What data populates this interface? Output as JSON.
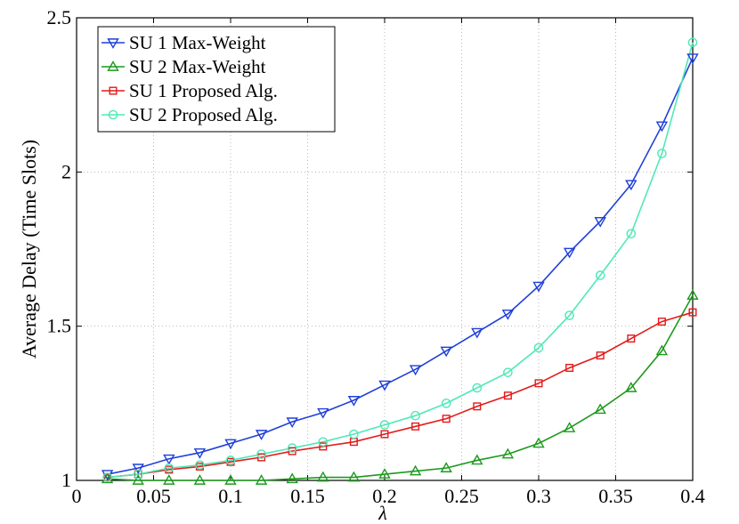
{
  "chart_data": {
    "type": "line",
    "title": "",
    "xlabel": "λ",
    "ylabel": "Average Delay (Time Slots)",
    "xlim": [
      0,
      0.4
    ],
    "ylim": [
      1,
      2.5
    ],
    "grid": true,
    "legend_position": "top-left",
    "x_ticks": [
      0,
      0.05,
      0.1,
      0.15,
      0.2,
      0.25,
      0.3,
      0.35,
      0.4
    ],
    "x_tick_labels": [
      "0",
      "0.05",
      "0.1",
      "0.15",
      "0.2",
      "0.25",
      "0.3",
      "0.35",
      "0.4"
    ],
    "y_ticks": [
      1,
      1.5,
      2,
      2.5
    ],
    "y_tick_labels": [
      "1",
      "1.5",
      "2",
      "2.5"
    ],
    "x": [
      0.02,
      0.04,
      0.06,
      0.08,
      0.1,
      0.12,
      0.14,
      0.16,
      0.18,
      0.2,
      0.22,
      0.24,
      0.26,
      0.28,
      0.3,
      0.32,
      0.34,
      0.36,
      0.38,
      0.4
    ],
    "series": [
      {
        "name": "SU 1 Max-Weight",
        "color": "#1f3fd8",
        "marker": "triangle-down",
        "values": [
          1.02,
          1.04,
          1.07,
          1.09,
          1.12,
          1.15,
          1.19,
          1.22,
          1.26,
          1.31,
          1.36,
          1.42,
          1.48,
          1.54,
          1.63,
          1.74,
          1.84,
          1.96,
          2.15,
          2.37
        ]
      },
      {
        "name": "SU 2 Max-Weight",
        "color": "#1c9a1c",
        "marker": "triangle-up",
        "values": [
          1.005,
          1.0,
          1.0,
          1.0,
          1.0,
          1.0,
          1.005,
          1.01,
          1.01,
          1.02,
          1.03,
          1.04,
          1.065,
          1.085,
          1.12,
          1.17,
          1.23,
          1.3,
          1.42,
          1.6
        ]
      },
      {
        "name": "SU 1 Proposed Alg.",
        "color": "#e31a1a",
        "marker": "square",
        "values": [
          1.01,
          1.02,
          1.035,
          1.045,
          1.06,
          1.075,
          1.095,
          1.11,
          1.125,
          1.15,
          1.175,
          1.2,
          1.24,
          1.275,
          1.315,
          1.365,
          1.405,
          1.46,
          1.515,
          1.545
        ]
      },
      {
        "name": "SU 2 Proposed Alg.",
        "color": "#4fe8b8",
        "marker": "circle",
        "values": [
          1.01,
          1.02,
          1.04,
          1.05,
          1.065,
          1.085,
          1.105,
          1.125,
          1.15,
          1.18,
          1.21,
          1.25,
          1.3,
          1.35,
          1.43,
          1.535,
          1.665,
          1.8,
          2.06,
          2.42
        ]
      }
    ]
  }
}
